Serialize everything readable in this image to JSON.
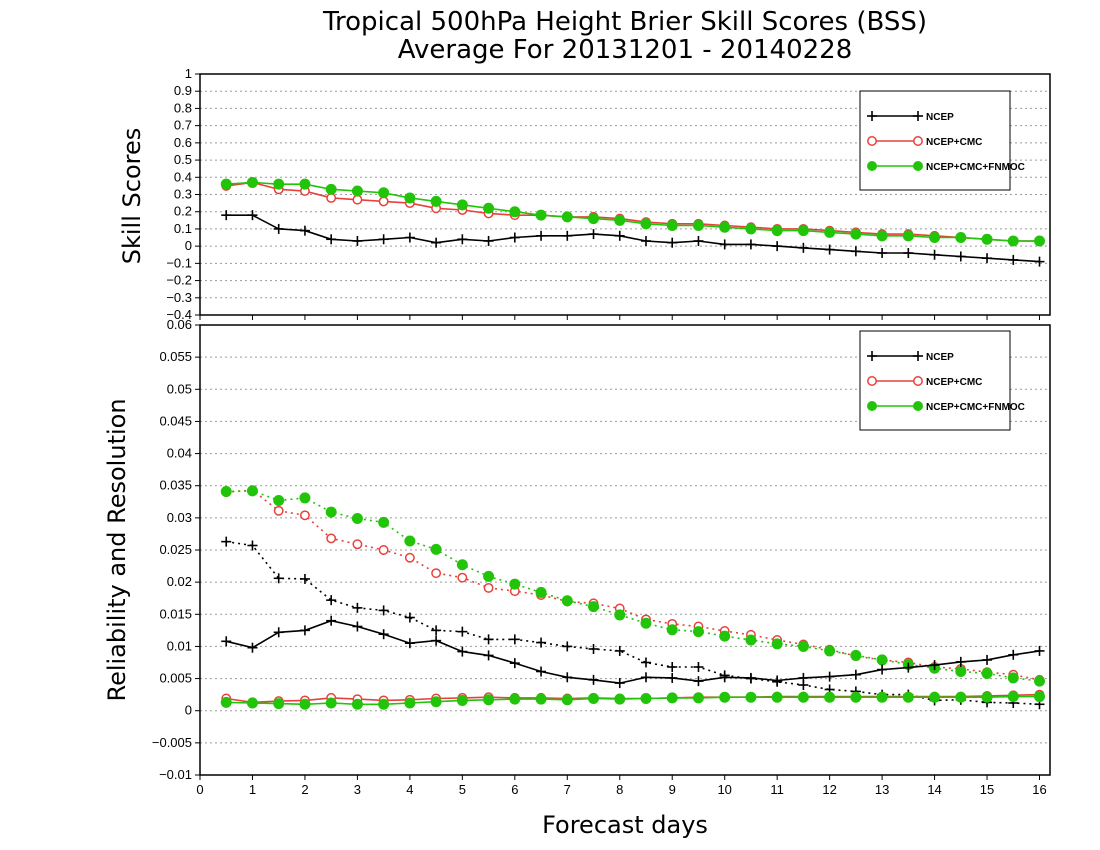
{
  "chart_data": [
    {
      "type": "line",
      "title": "Tropical 500hPa Height Brier Skill Scores (BSS)",
      "subtitle": "Average For 20131201 - 20140228",
      "xlabel": "Forecast days",
      "ylabel": "Skill Scores",
      "xlim": [
        0,
        16.2
      ],
      "ylim": [
        -0.4,
        1
      ],
      "x_ticks": [
        "0",
        "1",
        "2",
        "3",
        "4",
        "5",
        "6",
        "7",
        "8",
        "9",
        "10",
        "11",
        "12",
        "13",
        "14",
        "15",
        "16"
      ],
      "y_ticks": [
        "−0.4",
        "−0.3",
        "−0.2",
        "−0.1",
        "0",
        "0.1",
        "0.2",
        "0.3",
        "0.4",
        "0.5",
        "0.6",
        "0.7",
        "0.8",
        "0.9",
        "1"
      ],
      "grid": true,
      "legend_position": "top-right",
      "x": [
        0.5,
        1,
        1.5,
        2,
        2.5,
        3,
        3.5,
        4,
        4.5,
        5,
        5.5,
        6,
        6.5,
        7,
        7.5,
        8,
        8.5,
        9,
        9.5,
        10,
        10.5,
        11,
        11.5,
        12,
        12.5,
        13,
        13.5,
        14,
        14.5,
        15,
        15.5,
        16
      ],
      "series": [
        {
          "name": "NCEP",
          "color": "#000000",
          "marker": "plus",
          "values": [
            0.18,
            0.18,
            0.1,
            0.09,
            0.04,
            0.03,
            0.04,
            0.05,
            0.02,
            0.04,
            0.03,
            0.05,
            0.06,
            0.06,
            0.07,
            0.06,
            0.03,
            0.02,
            0.03,
            0.01,
            0.01,
            0.0,
            -0.01,
            -0.02,
            -0.03,
            -0.04,
            -0.04,
            -0.05,
            -0.06,
            -0.07,
            -0.08,
            -0.09
          ]
        },
        {
          "name": "NCEP+CMC",
          "color": "#e8413c",
          "marker": "open-circle",
          "values": [
            0.35,
            0.37,
            0.33,
            0.32,
            0.28,
            0.27,
            0.26,
            0.25,
            0.22,
            0.21,
            0.19,
            0.18,
            0.18,
            0.17,
            0.17,
            0.16,
            0.14,
            0.13,
            0.13,
            0.12,
            0.11,
            0.1,
            0.1,
            0.09,
            0.08,
            0.07,
            0.07,
            0.06,
            0.05,
            0.04,
            0.03,
            0.03
          ]
        },
        {
          "name": "NCEP+CMC+FNMOC",
          "color": "#22c40a",
          "marker": "filled-circle",
          "values": [
            0.36,
            0.37,
            0.36,
            0.36,
            0.33,
            0.32,
            0.31,
            0.28,
            0.26,
            0.24,
            0.22,
            0.2,
            0.18,
            0.17,
            0.16,
            0.15,
            0.13,
            0.12,
            0.12,
            0.11,
            0.1,
            0.09,
            0.09,
            0.08,
            0.07,
            0.06,
            0.06,
            0.05,
            0.05,
            0.04,
            0.03,
            0.03
          ]
        }
      ]
    },
    {
      "type": "line",
      "xlabel": "Forecast days",
      "ylabel": "Reliability and Resolution",
      "xlim": [
        0,
        16.2
      ],
      "ylim": [
        -0.01,
        0.06
      ],
      "x_ticks": [
        "0",
        "1",
        "2",
        "3",
        "4",
        "5",
        "6",
        "7",
        "8",
        "9",
        "10",
        "11",
        "12",
        "13",
        "14",
        "15",
        "16"
      ],
      "y_ticks": [
        "−0.01",
        "−0.005",
        "0",
        "0.005",
        "0.01",
        "0.015",
        "0.02",
        "0.025",
        "0.03",
        "0.035",
        "0.04",
        "0.045",
        "0.05",
        "0.055",
        "0.06"
      ],
      "grid": true,
      "legend_position": "top-right",
      "x": [
        0.5,
        1,
        1.5,
        2,
        2.5,
        3,
        3.5,
        4,
        4.5,
        5,
        5.5,
        6,
        6.5,
        7,
        7.5,
        8,
        8.5,
        9,
        9.5,
        10,
        10.5,
        11,
        11.5,
        12,
        12.5,
        13,
        13.5,
        14,
        14.5,
        15,
        15.5,
        16
      ],
      "series": [
        {
          "name": "NCEP",
          "color": "#000000",
          "marker": "plus",
          "style": "dotted",
          "metric": "resolution",
          "values": [
            0.0263,
            0.0257,
            0.0206,
            0.0205,
            0.0172,
            0.016,
            0.0156,
            0.0145,
            0.0125,
            0.0123,
            0.0111,
            0.0111,
            0.0106,
            0.01,
            0.0096,
            0.0093,
            0.0075,
            0.0068,
            0.0068,
            0.0055,
            0.005,
            0.0045,
            0.004,
            0.0033,
            0.003,
            0.0025,
            0.0025,
            0.0016,
            0.0017,
            0.0013,
            0.0012,
            0.001
          ]
        },
        {
          "name": "NCEP+CMC",
          "color": "#e8413c",
          "marker": "open-circle",
          "style": "dotted",
          "metric": "resolution",
          "values": [
            0.034,
            0.0343,
            0.0311,
            0.0304,
            0.0268,
            0.0259,
            0.025,
            0.0238,
            0.0214,
            0.0207,
            0.0191,
            0.0186,
            0.018,
            0.017,
            0.0167,
            0.0159,
            0.0142,
            0.0135,
            0.0131,
            0.0124,
            0.0118,
            0.011,
            0.0103,
            0.0095,
            0.0085,
            0.0079,
            0.0075,
            0.0068,
            0.0065,
            0.006,
            0.0056,
            0.0048
          ]
        },
        {
          "name": "NCEP+CMC+FNMOC",
          "color": "#22c40a",
          "marker": "filled-circle",
          "style": "dotted",
          "metric": "resolution",
          "values": [
            0.0341,
            0.0342,
            0.0327,
            0.0331,
            0.0309,
            0.0299,
            0.0293,
            0.0264,
            0.0251,
            0.0227,
            0.0209,
            0.0197,
            0.0184,
            0.0171,
            0.0162,
            0.0149,
            0.0136,
            0.0126,
            0.0123,
            0.0116,
            0.011,
            0.0104,
            0.01,
            0.0093,
            0.0086,
            0.0079,
            0.0072,
            0.0066,
            0.0061,
            0.0058,
            0.0051,
            0.0046
          ]
        },
        {
          "name": "NCEP",
          "color": "#000000",
          "marker": "plus",
          "style": "solid",
          "metric": "reliability",
          "values": [
            0.0108,
            0.0098,
            0.0122,
            0.0125,
            0.014,
            0.0131,
            0.0119,
            0.0105,
            0.0109,
            0.0092,
            0.0086,
            0.0074,
            0.0061,
            0.0052,
            0.0048,
            0.0043,
            0.0052,
            0.0051,
            0.0046,
            0.0052,
            0.0051,
            0.0047,
            0.0051,
            0.0053,
            0.0056,
            0.0064,
            0.0067,
            0.0071,
            0.0076,
            0.0079,
            0.0087,
            0.0093
          ]
        },
        {
          "name": "NCEP+CMC",
          "color": "#e8413c",
          "marker": "open-circle",
          "style": "solid",
          "metric": "reliability",
          "values": [
            0.0019,
            0.0013,
            0.0015,
            0.0016,
            0.002,
            0.0018,
            0.0016,
            0.0017,
            0.0019,
            0.002,
            0.0021,
            0.002,
            0.002,
            0.0019,
            0.002,
            0.0019,
            0.0019,
            0.002,
            0.0021,
            0.0021,
            0.0021,
            0.0022,
            0.0022,
            0.0022,
            0.0022,
            0.0022,
            0.0022,
            0.0022,
            0.0022,
            0.0023,
            0.0024,
            0.0025
          ]
        },
        {
          "name": "NCEP+CMC+FNMOC",
          "color": "#22c40a",
          "marker": "filled-circle",
          "style": "solid",
          "metric": "reliability",
          "values": [
            0.0013,
            0.0012,
            0.0011,
            0.001,
            0.0012,
            0.001,
            0.001,
            0.0012,
            0.0014,
            0.0016,
            0.0017,
            0.0018,
            0.0018,
            0.0017,
            0.0019,
            0.0018,
            0.0019,
            0.002,
            0.002,
            0.0021,
            0.0021,
            0.0021,
            0.0021,
            0.0021,
            0.0021,
            0.0021,
            0.0021,
            0.0021,
            0.0021,
            0.0021,
            0.0022,
            0.0022
          ]
        }
      ]
    }
  ]
}
